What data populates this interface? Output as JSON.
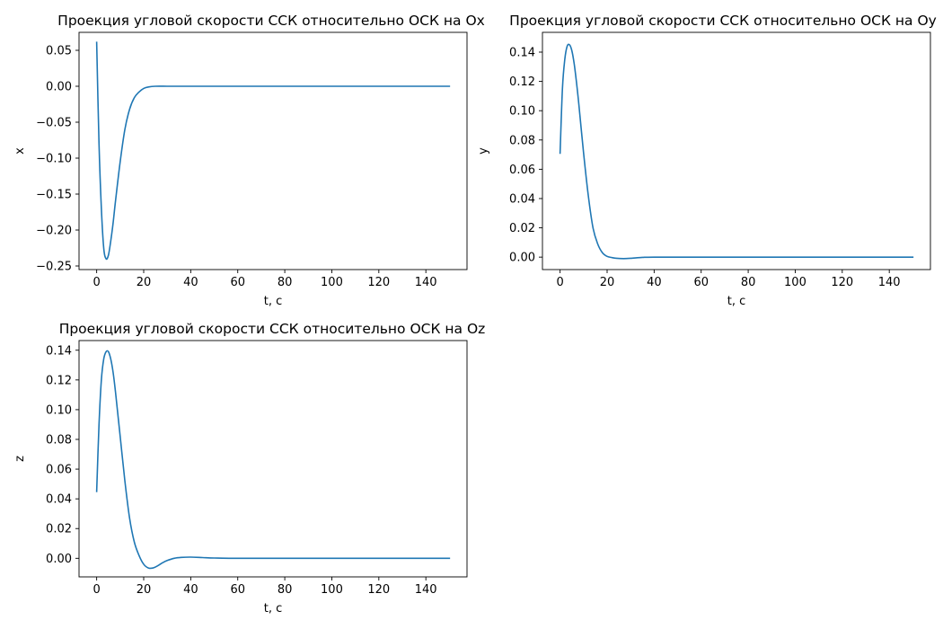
{
  "line_color": "#1f77b4",
  "chart_data": [
    {
      "type": "line",
      "title": "Проекция угловой скорости ССК относительно ОСК на Ox",
      "xlabel": "t, c",
      "ylabel": "x",
      "xlim": [
        -7.5,
        157.5
      ],
      "ylim": [
        -0.255,
        0.075
      ],
      "xticks": [
        0,
        20,
        40,
        60,
        80,
        100,
        120,
        140
      ],
      "yticks": [
        0.05,
        0.0,
        -0.05,
        -0.1,
        -0.15,
        -0.2,
        -0.25
      ],
      "ytick_labels": [
        "0.05",
        "0.00",
        "−0.05",
        "−0.10",
        "−0.15",
        "−0.20",
        "−0.25"
      ],
      "grid": false,
      "series": [
        {
          "x": [
            0,
            1,
            2,
            3,
            4,
            5,
            6,
            7,
            8,
            10,
            12,
            14,
            16,
            18,
            20,
            22,
            25,
            30,
            35,
            40,
            60,
            100,
            150
          ],
          "y": [
            0.061,
            -0.08,
            -0.17,
            -0.225,
            -0.24,
            -0.235,
            -0.215,
            -0.19,
            -0.16,
            -0.105,
            -0.06,
            -0.032,
            -0.016,
            -0.008,
            -0.003,
            -0.001,
            0.0,
            0.0,
            0.0,
            0.0,
            0.0,
            0.0,
            0.0
          ]
        }
      ]
    },
    {
      "type": "line",
      "title": "Проекция угловой скорости ССК относительно ОСК на Oy",
      "xlabel": "t, c",
      "ylabel": "y",
      "xlim": [
        -7.5,
        157.5
      ],
      "ylim": [
        -0.0085,
        0.1535
      ],
      "xticks": [
        0,
        20,
        40,
        60,
        80,
        100,
        120,
        140
      ],
      "yticks": [
        0.14,
        0.12,
        0.1,
        0.08,
        0.06,
        0.04,
        0.02,
        0.0
      ],
      "ytick_labels": [
        "0.14",
        "0.12",
        "0.10",
        "0.08",
        "0.06",
        "0.04",
        "0.02",
        "0.00"
      ],
      "grid": false,
      "series": [
        {
          "x": [
            0,
            1,
            2,
            3,
            4,
            5,
            6,
            7,
            8,
            10,
            12,
            14,
            16,
            18,
            20,
            22,
            24,
            27,
            30,
            35,
            40,
            60,
            100,
            150
          ],
          "y": [
            0.071,
            0.115,
            0.135,
            0.144,
            0.145,
            0.141,
            0.132,
            0.119,
            0.104,
            0.071,
            0.042,
            0.02,
            0.009,
            0.003,
            0.0005,
            -0.0003,
            -0.0008,
            -0.001,
            -0.0008,
            -0.0002,
            0.0,
            0.0,
            0.0,
            0.0
          ]
        }
      ]
    },
    {
      "type": "line",
      "title": "Проекция угловой скорости ССК относительно ОСК на Oz",
      "xlabel": "t, c",
      "ylabel": "z",
      "xlim": [
        -7.5,
        157.5
      ],
      "ylim": [
        -0.0125,
        0.1465
      ],
      "xticks": [
        0,
        20,
        40,
        60,
        80,
        100,
        120,
        140
      ],
      "yticks": [
        0.14,
        0.12,
        0.1,
        0.08,
        0.06,
        0.04,
        0.02,
        0.0
      ],
      "ytick_labels": [
        "0.14",
        "0.12",
        "0.10",
        "0.08",
        "0.06",
        "0.04",
        "0.02",
        "0.00"
      ],
      "grid": false,
      "series": [
        {
          "x": [
            0,
            1,
            2,
            3,
            4,
            5,
            6,
            7,
            8,
            10,
            12,
            14,
            16,
            18,
            20,
            22,
            24,
            26,
            28,
            30,
            33,
            36,
            40,
            45,
            50,
            60,
            100,
            150
          ],
          "y": [
            0.045,
            0.09,
            0.12,
            0.134,
            0.139,
            0.139,
            0.134,
            0.125,
            0.112,
            0.082,
            0.052,
            0.027,
            0.011,
            0.002,
            -0.004,
            -0.0065,
            -0.0065,
            -0.005,
            -0.003,
            -0.0015,
            0.0,
            0.0006,
            0.0008,
            0.0005,
            0.0002,
            0.0,
            0.0,
            0.0
          ]
        }
      ]
    }
  ]
}
